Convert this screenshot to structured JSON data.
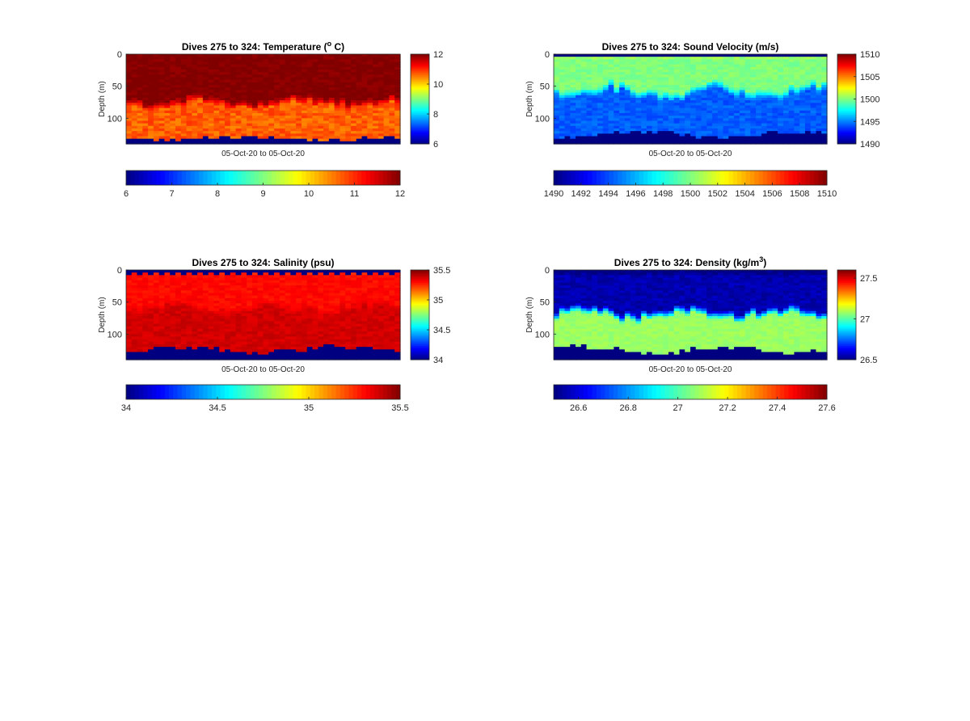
{
  "chart_data": [
    {
      "type": "heatmap",
      "title": "Dives 275 to 324: Temperature (",
      "title_sup": "o",
      "title_end": " C)",
      "ylabel": "Depth (m)",
      "xlabel": "05-Oct-20 to 05-Oct-20",
      "y_ticks": [
        "0",
        "50",
        "100"
      ],
      "ylim": [
        0,
        140
      ],
      "clim": [
        6,
        12
      ],
      "colorbar_right_ticks": [
        "6",
        "8",
        "10",
        "12"
      ],
      "colorbar_bottom_ticks": [
        "6",
        "7",
        "8",
        "9",
        "10",
        "11",
        "12"
      ],
      "dives": [
        275,
        324
      ],
      "nodata_value": 6,
      "profile": {
        "surface_value": 12,
        "upper_value": 12,
        "lower_value": 10.7,
        "boundary_depth": 75,
        "boundary_variation": 10,
        "upper_jitter": 0.15,
        "lower_jitter": 0.25,
        "bottom_depth": 132,
        "bottom_variation": 5,
        "top_gap_depth": 2
      }
    },
    {
      "type": "heatmap",
      "title": "Dives 275 to 324: Sound Velocity (m/s)",
      "title_sup": "",
      "title_end": "",
      "ylabel": "Depth (m)",
      "xlabel": "05-Oct-20 to 05-Oct-20",
      "y_ticks": [
        "0",
        "50",
        "100"
      ],
      "ylim": [
        0,
        140
      ],
      "clim": [
        1490,
        1510
      ],
      "colorbar_right_ticks": [
        "1490",
        "1495",
        "1500",
        "1505",
        "1510"
      ],
      "colorbar_bottom_ticks": [
        "1490",
        "1492",
        "1494",
        "1496",
        "1498",
        "1500",
        "1502",
        "1504",
        "1506",
        "1508",
        "1510"
      ],
      "dives": [
        275,
        324
      ],
      "nodata_value": 1490,
      "profile": {
        "surface_value": 1500.5,
        "upper_value": 1500.0,
        "lower_value": 1494.3,
        "boundary_depth": 58,
        "boundary_variation": 14,
        "upper_jitter": 0.5,
        "lower_jitter": 0.6,
        "bottom_depth": 125,
        "bottom_variation": 7,
        "top_gap_depth": 6
      }
    },
    {
      "type": "heatmap",
      "title": "Dives 275 to 324: Salinity (psu)",
      "title_sup": "",
      "title_end": "",
      "ylabel": "Depth (m)",
      "xlabel": "05-Oct-20 to 05-Oct-20",
      "y_ticks": [
        "0",
        "50",
        "100"
      ],
      "ylim": [
        0,
        140
      ],
      "clim": [
        34,
        35.5
      ],
      "colorbar_right_ticks": [
        "34",
        "34.5",
        "35",
        "35.5"
      ],
      "colorbar_bottom_ticks": [
        "34",
        "34.5",
        "35",
        "35.5"
      ],
      "dives": [
        275,
        324
      ],
      "nodata_value": 34,
      "profile": {
        "surface_value": 35.27,
        "upper_value": 35.3,
        "lower_value": 35.38,
        "boundary_depth": 60,
        "boundary_variation": 12,
        "upper_jitter": 0.03,
        "lower_jitter": 0.03,
        "bottom_depth": 125,
        "bottom_variation": 7,
        "top_gap_depth": 8
      }
    },
    {
      "type": "heatmap",
      "title": "Dives 275 to 324: Density (kg/m",
      "title_sup": "3",
      "title_end": ")",
      "ylabel": "Depth (m)",
      "xlabel": "05-Oct-20 to 05-Oct-20",
      "y_ticks": [
        "0",
        "50",
        "100"
      ],
      "ylim": [
        0,
        140
      ],
      "clim": [
        26.5,
        27.6
      ],
      "colorbar_right_ticks": [
        "26.5",
        "27",
        "27.5"
      ],
      "colorbar_bottom_ticks": [
        "26.6",
        "26.8",
        "27",
        "27.2",
        "27.4",
        "27.6"
      ],
      "dives": [
        275,
        324
      ],
      "nodata_value": 26.5,
      "profile": {
        "surface_value": 26.52,
        "upper_value": 26.55,
        "lower_value": 27.08,
        "boundary_depth": 68,
        "boundary_variation": 12,
        "upper_jitter": 0.03,
        "lower_jitter": 0.02,
        "bottom_depth": 125,
        "bottom_variation": 7,
        "top_gap_depth": 5
      }
    }
  ]
}
